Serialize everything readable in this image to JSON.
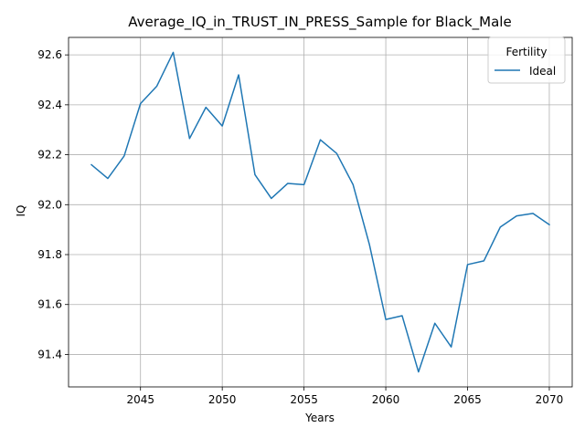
{
  "chart_data": {
    "type": "line",
    "title": "Average_IQ_in_TRUST_IN_PRESS_Sample for Black_Male",
    "xlabel": "Years",
    "ylabel": "IQ",
    "xlim": [
      2040.6,
      2071.4
    ],
    "ylim": [
      91.27,
      92.67
    ],
    "xticks": [
      2045,
      2050,
      2055,
      2060,
      2065,
      2070
    ],
    "yticks": [
      91.4,
      91.6,
      91.8,
      92.0,
      92.2,
      92.4,
      92.6
    ],
    "xtick_labels": [
      "2045",
      "2050",
      "2055",
      "2060",
      "2065",
      "2070"
    ],
    "ytick_labels": [
      "91.4",
      "91.6",
      "91.8",
      "92.0",
      "92.2",
      "92.4",
      "92.6"
    ],
    "grid": true,
    "legend": {
      "title": "Fertility",
      "placement": "top-right"
    },
    "series": [
      {
        "name": "Ideal",
        "color": "#1f77b4",
        "x": [
          2042,
          2043,
          2044,
          2045,
          2046,
          2047,
          2048,
          2049,
          2050,
          2051,
          2052,
          2053,
          2054,
          2055,
          2056,
          2057,
          2058,
          2059,
          2060,
          2061,
          2062,
          2063,
          2064,
          2065,
          2066,
          2067,
          2068,
          2069,
          2070
        ],
        "y": [
          92.16,
          92.105,
          92.195,
          92.405,
          92.475,
          92.61,
          92.265,
          92.39,
          92.315,
          92.52,
          92.12,
          92.025,
          92.085,
          92.08,
          92.26,
          92.205,
          92.08,
          91.84,
          91.54,
          91.555,
          91.33,
          91.525,
          91.43,
          91.76,
          91.775,
          91.91,
          91.955,
          91.965,
          91.92
        ]
      }
    ]
  }
}
